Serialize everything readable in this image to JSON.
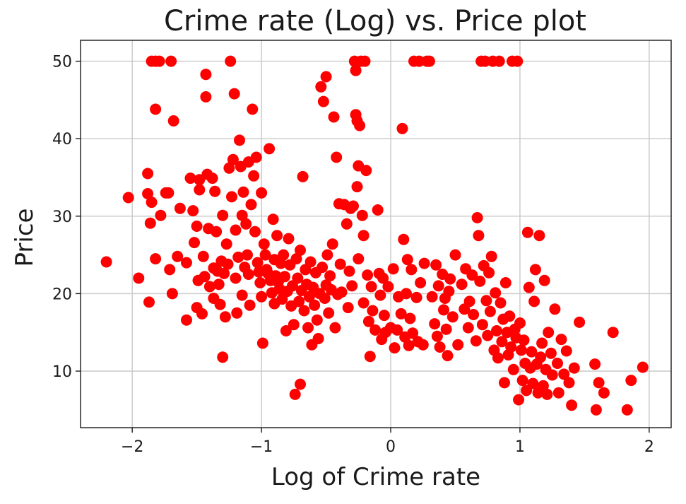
{
  "chart_data": {
    "type": "scatter",
    "title": "Crime rate (Log) vs. Price plot",
    "xlabel": "Log of Crime rate",
    "ylabel": "Price",
    "xlim": [
      -2.4,
      2.17
    ],
    "ylim": [
      2.7,
      52.7
    ],
    "xticks": [
      -2,
      -1,
      0,
      1,
      2
    ],
    "xtick_labels": [
      "−2",
      "−1",
      "0",
      "1",
      "2"
    ],
    "yticks": [
      10,
      20,
      30,
      40,
      50
    ],
    "ytick_labels": [
      "10",
      "20",
      "30",
      "40",
      "50"
    ],
    "grid": true,
    "marker_color": "#ff0000",
    "series": [
      {
        "points": [
          [
            -2.2,
            24.1
          ],
          [
            -2.03,
            32.4
          ],
          [
            -1.95,
            22.0
          ],
          [
            -1.87,
            18.9
          ],
          [
            -1.88,
            35.5
          ],
          [
            -1.88,
            32.9
          ],
          [
            -1.85,
            31.8
          ],
          [
            -1.86,
            29.1
          ],
          [
            -1.82,
            24.5
          ],
          [
            -1.82,
            43.8
          ],
          [
            -1.85,
            50.0
          ],
          [
            -1.82,
            50.0
          ],
          [
            -1.79,
            50.0
          ],
          [
            -1.7,
            50.0
          ],
          [
            -1.68,
            42.3
          ],
          [
            -1.78,
            30.1
          ],
          [
            -1.74,
            33.0
          ],
          [
            -1.72,
            33.0
          ],
          [
            -1.71,
            23.1
          ],
          [
            -1.69,
            20.0
          ],
          [
            -1.65,
            24.8
          ],
          [
            -1.63,
            31.0
          ],
          [
            -1.58,
            24.0
          ],
          [
            -1.58,
            16.6
          ],
          [
            -1.55,
            34.9
          ],
          [
            -1.53,
            30.7
          ],
          [
            -1.52,
            26.6
          ],
          [
            -1.5,
            28.7
          ],
          [
            -1.5,
            18.2
          ],
          [
            -1.49,
            21.7
          ],
          [
            -1.48,
            34.7
          ],
          [
            -1.48,
            33.4
          ],
          [
            -1.46,
            17.4
          ],
          [
            -1.45,
            24.8
          ],
          [
            -1.44,
            22.2
          ],
          [
            -1.43,
            48.3
          ],
          [
            -1.43,
            45.4
          ],
          [
            -1.42,
            35.4
          ],
          [
            -1.41,
            28.4
          ],
          [
            -1.4,
            20.9
          ],
          [
            -1.38,
            34.9
          ],
          [
            -1.37,
            23.3
          ],
          [
            -1.37,
            19.4
          ],
          [
            -1.36,
            33.2
          ],
          [
            -1.35,
            28.0
          ],
          [
            -1.34,
            22.9
          ],
          [
            -1.33,
            21.2
          ],
          [
            -1.32,
            18.6
          ],
          [
            -1.31,
            24.2
          ],
          [
            -1.3,
            30.1
          ],
          [
            -1.3,
            11.8
          ],
          [
            -1.29,
            22.6
          ],
          [
            -1.28,
            17.0
          ],
          [
            -1.27,
            26.4
          ],
          [
            -1.26,
            23.8
          ],
          [
            -1.25,
            36.2
          ],
          [
            -1.24,
            50.0
          ],
          [
            -1.23,
            32.5
          ],
          [
            -1.22,
            37.3
          ],
          [
            -1.21,
            45.8
          ],
          [
            -1.2,
            28.2
          ],
          [
            -1.2,
            22.0
          ],
          [
            -1.19,
            17.5
          ],
          [
            -1.18,
            24.7
          ],
          [
            -1.17,
            39.8
          ],
          [
            -1.16,
            36.4
          ],
          [
            -1.15,
            30.1
          ],
          [
            -1.15,
            19.8
          ],
          [
            -1.14,
            33.1
          ],
          [
            -1.13,
            23.4
          ],
          [
            -1.12,
            29.0
          ],
          [
            -1.11,
            25.0
          ],
          [
            -1.1,
            22.5
          ],
          [
            -1.1,
            37.0
          ],
          [
            -1.09,
            18.5
          ],
          [
            -1.08,
            31.5
          ],
          [
            -1.07,
            43.8
          ],
          [
            -1.06,
            35.2
          ],
          [
            -1.05,
            28.0
          ],
          [
            -1.04,
            37.6
          ],
          [
            -1.03,
            24.0
          ],
          [
            -1.02,
            22.8
          ],
          [
            -1.01,
            21.4
          ],
          [
            -1.0,
            33.0
          ],
          [
            -1.0,
            19.6
          ],
          [
            -0.99,
            13.6
          ],
          [
            -0.98,
            26.4
          ],
          [
            -0.97,
            25.0
          ],
          [
            -0.96,
            23.1
          ],
          [
            -0.95,
            22.6
          ],
          [
            -0.94,
            38.7
          ],
          [
            -0.93,
            21.7
          ],
          [
            -0.92,
            20.1
          ],
          [
            -0.91,
            29.6
          ],
          [
            -0.9,
            24.4
          ],
          [
            -0.9,
            18.7
          ],
          [
            -0.89,
            22.3
          ],
          [
            -0.88,
            27.5
          ],
          [
            -0.87,
            21.5
          ],
          [
            -0.86,
            20.6
          ],
          [
            -0.85,
            23.9
          ],
          [
            -0.84,
            19.3
          ],
          [
            -0.83,
            25.0
          ],
          [
            -0.82,
            22.2
          ],
          [
            -0.81,
            15.2
          ],
          [
            -0.8,
            20.3
          ],
          [
            -0.79,
            27.1
          ],
          [
            -0.78,
            23.7
          ],
          [
            -0.77,
            18.4
          ],
          [
            -0.76,
            21.0
          ],
          [
            -0.75,
            16.0
          ],
          [
            -0.74,
            7.0
          ],
          [
            -0.73,
            24.5
          ],
          [
            -0.72,
            22.0
          ],
          [
            -0.71,
            19.0
          ],
          [
            -0.7,
            25.6
          ],
          [
            -0.7,
            8.3
          ],
          [
            -0.69,
            20.4
          ],
          [
            -0.68,
            35.1
          ],
          [
            -0.67,
            17.8
          ],
          [
            -0.66,
            23.1
          ],
          [
            -0.65,
            21.2
          ],
          [
            -0.64,
            15.6
          ],
          [
            -0.63,
            19.6
          ],
          [
            -0.62,
            24.1
          ],
          [
            -0.61,
            13.4
          ],
          [
            -0.6,
            20.8
          ],
          [
            -0.59,
            18.5
          ],
          [
            -0.58,
            22.7
          ],
          [
            -0.57,
            16.6
          ],
          [
            -0.56,
            14.2
          ],
          [
            -0.55,
            20.0
          ],
          [
            -0.54,
            46.7
          ],
          [
            -0.53,
            23.4
          ],
          [
            -0.52,
            44.8
          ],
          [
            -0.51,
            19.4
          ],
          [
            -0.5,
            48.0
          ],
          [
            -0.5,
            21.1
          ],
          [
            -0.49,
            25.0
          ],
          [
            -0.48,
            17.5
          ],
          [
            -0.47,
            22.3
          ],
          [
            -0.46,
            20.5
          ],
          [
            -0.45,
            26.4
          ],
          [
            -0.44,
            42.8
          ],
          [
            -0.43,
            15.6
          ],
          [
            -0.42,
            37.6
          ],
          [
            -0.41,
            19.9
          ],
          [
            -0.4,
            31.6
          ],
          [
            -0.39,
            23.8
          ],
          [
            -0.38,
            20.2
          ],
          [
            -0.36,
            31.5
          ],
          [
            -0.34,
            29.0
          ],
          [
            -0.33,
            18.2
          ],
          [
            -0.32,
            22.9
          ],
          [
            -0.31,
            31.0
          ],
          [
            -0.3,
            21.0
          ],
          [
            -0.29,
            31.3
          ],
          [
            -0.28,
            50.0
          ],
          [
            -0.27,
            48.8
          ],
          [
            -0.27,
            43.1
          ],
          [
            -0.26,
            42.3
          ],
          [
            -0.26,
            33.8
          ],
          [
            -0.25,
            36.5
          ],
          [
            -0.25,
            24.5
          ],
          [
            -0.24,
            41.7
          ],
          [
            -0.23,
            50.0
          ],
          [
            -0.22,
            30.1
          ],
          [
            -0.21,
            27.5
          ],
          [
            -0.21,
            18.8
          ],
          [
            -0.2,
            50.0
          ],
          [
            -0.19,
            35.9
          ],
          [
            -0.18,
            22.4
          ],
          [
            -0.17,
            16.4
          ],
          [
            -0.16,
            11.9
          ],
          [
            -0.15,
            20.9
          ],
          [
            -0.14,
            17.8
          ],
          [
            -0.12,
            15.3
          ],
          [
            -0.1,
            30.8
          ],
          [
            -0.09,
            22.6
          ],
          [
            -0.08,
            19.8
          ],
          [
            -0.07,
            14.1
          ],
          [
            -0.06,
            22.0
          ],
          [
            -0.05,
            17.2
          ],
          [
            -0.04,
            15.0
          ],
          [
            -0.02,
            20.9
          ],
          [
            0.0,
            15.6
          ],
          [
            0.02,
            23.2
          ],
          [
            0.03,
            13.0
          ],
          [
            0.05,
            15.3
          ],
          [
            0.06,
            19.6
          ],
          [
            0.08,
            17.4
          ],
          [
            0.09,
            41.3
          ],
          [
            0.1,
            27.0
          ],
          [
            0.11,
            14.4
          ],
          [
            0.12,
            20.0
          ],
          [
            0.13,
            24.4
          ],
          [
            0.14,
            13.3
          ],
          [
            0.15,
            16.8
          ],
          [
            0.16,
            23.1
          ],
          [
            0.17,
            14.9
          ],
          [
            0.18,
            50.0
          ],
          [
            0.2,
            19.5
          ],
          [
            0.21,
            13.8
          ],
          [
            0.22,
            50.0
          ],
          [
            0.23,
            21.4
          ],
          [
            0.25,
            13.4
          ],
          [
            0.26,
            23.9
          ],
          [
            0.28,
            50.0
          ],
          [
            0.3,
            50.0
          ],
          [
            0.32,
            19.6
          ],
          [
            0.34,
            16.1
          ],
          [
            0.35,
            23.7
          ],
          [
            0.36,
            14.5
          ],
          [
            0.37,
            21.0
          ],
          [
            0.38,
            13.1
          ],
          [
            0.4,
            22.5
          ],
          [
            0.41,
            17.9
          ],
          [
            0.42,
            19.4
          ],
          [
            0.43,
            15.4
          ],
          [
            0.44,
            12.0
          ],
          [
            0.45,
            20.3
          ],
          [
            0.46,
            21.9
          ],
          [
            0.48,
            17.0
          ],
          [
            0.5,
            25.0
          ],
          [
            0.52,
            13.4
          ],
          [
            0.55,
            21.2
          ],
          [
            0.57,
            18.0
          ],
          [
            0.58,
            23.2
          ],
          [
            0.6,
            15.6
          ],
          [
            0.61,
            19.0
          ],
          [
            0.63,
            22.4
          ],
          [
            0.64,
            17.3
          ],
          [
            0.66,
            13.9
          ],
          [
            0.67,
            29.8
          ],
          [
            0.68,
            27.5
          ],
          [
            0.69,
            21.6
          ],
          [
            0.7,
            50.0
          ],
          [
            0.71,
            16.0
          ],
          [
            0.72,
            23.6
          ],
          [
            0.73,
            50.0
          ],
          [
            0.74,
            19.1
          ],
          [
            0.75,
            14.6
          ],
          [
            0.76,
            22.7
          ],
          [
            0.77,
            17.7
          ],
          [
            0.78,
            24.8
          ],
          [
            0.79,
            50.0
          ],
          [
            0.8,
            12.7
          ],
          [
            0.81,
            20.1
          ],
          [
            0.82,
            15.2
          ],
          [
            0.83,
            11.7
          ],
          [
            0.84,
            50.0
          ],
          [
            0.85,
            18.8
          ],
          [
            0.86,
            13.8
          ],
          [
            0.87,
            16.7
          ],
          [
            0.88,
            8.5
          ],
          [
            0.89,
            21.4
          ],
          [
            0.9,
            15.0
          ],
          [
            0.91,
            12.1
          ],
          [
            0.92,
            17.1
          ],
          [
            0.93,
            13.1
          ],
          [
            0.94,
            50.0
          ],
          [
            0.95,
            10.2
          ],
          [
            0.96,
            15.4
          ],
          [
            0.97,
            14.3
          ],
          [
            0.98,
            50.0
          ],
          [
            0.99,
            6.3
          ],
          [
            1.0,
            16.2
          ],
          [
            1.01,
            12.7
          ],
          [
            1.02,
            8.8
          ],
          [
            1.03,
            14.0
          ],
          [
            1.04,
            11.0
          ],
          [
            1.05,
            7.5
          ],
          [
            1.06,
            27.9
          ],
          [
            1.07,
            20.8
          ],
          [
            1.08,
            10.4
          ],
          [
            1.09,
            12.5
          ],
          [
            1.1,
            8.4
          ],
          [
            1.11,
            19.0
          ],
          [
            1.12,
            23.1
          ],
          [
            1.13,
            10.9
          ],
          [
            1.14,
            7.2
          ],
          [
            1.15,
            27.5
          ],
          [
            1.16,
            11.8
          ],
          [
            1.17,
            13.6
          ],
          [
            1.18,
            8.1
          ],
          [
            1.19,
            21.7
          ],
          [
            1.2,
            10.2
          ],
          [
            1.21,
            7.0
          ],
          [
            1.22,
            15.0
          ],
          [
            1.24,
            12.3
          ],
          [
            1.25,
            9.5
          ],
          [
            1.27,
            18.0
          ],
          [
            1.29,
            11.0
          ],
          [
            1.3,
            7.2
          ],
          [
            1.32,
            14.1
          ],
          [
            1.34,
            9.6
          ],
          [
            1.36,
            12.6
          ],
          [
            1.38,
            8.5
          ],
          [
            1.4,
            5.6
          ],
          [
            1.42,
            10.4
          ],
          [
            1.46,
            16.3
          ],
          [
            1.58,
            10.9
          ],
          [
            1.59,
            5.0
          ],
          [
            1.61,
            8.5
          ],
          [
            1.65,
            7.2
          ],
          [
            1.72,
            15.0
          ],
          [
            1.83,
            5.0
          ],
          [
            1.86,
            8.8
          ],
          [
            1.95,
            10.5
          ]
        ]
      }
    ]
  }
}
